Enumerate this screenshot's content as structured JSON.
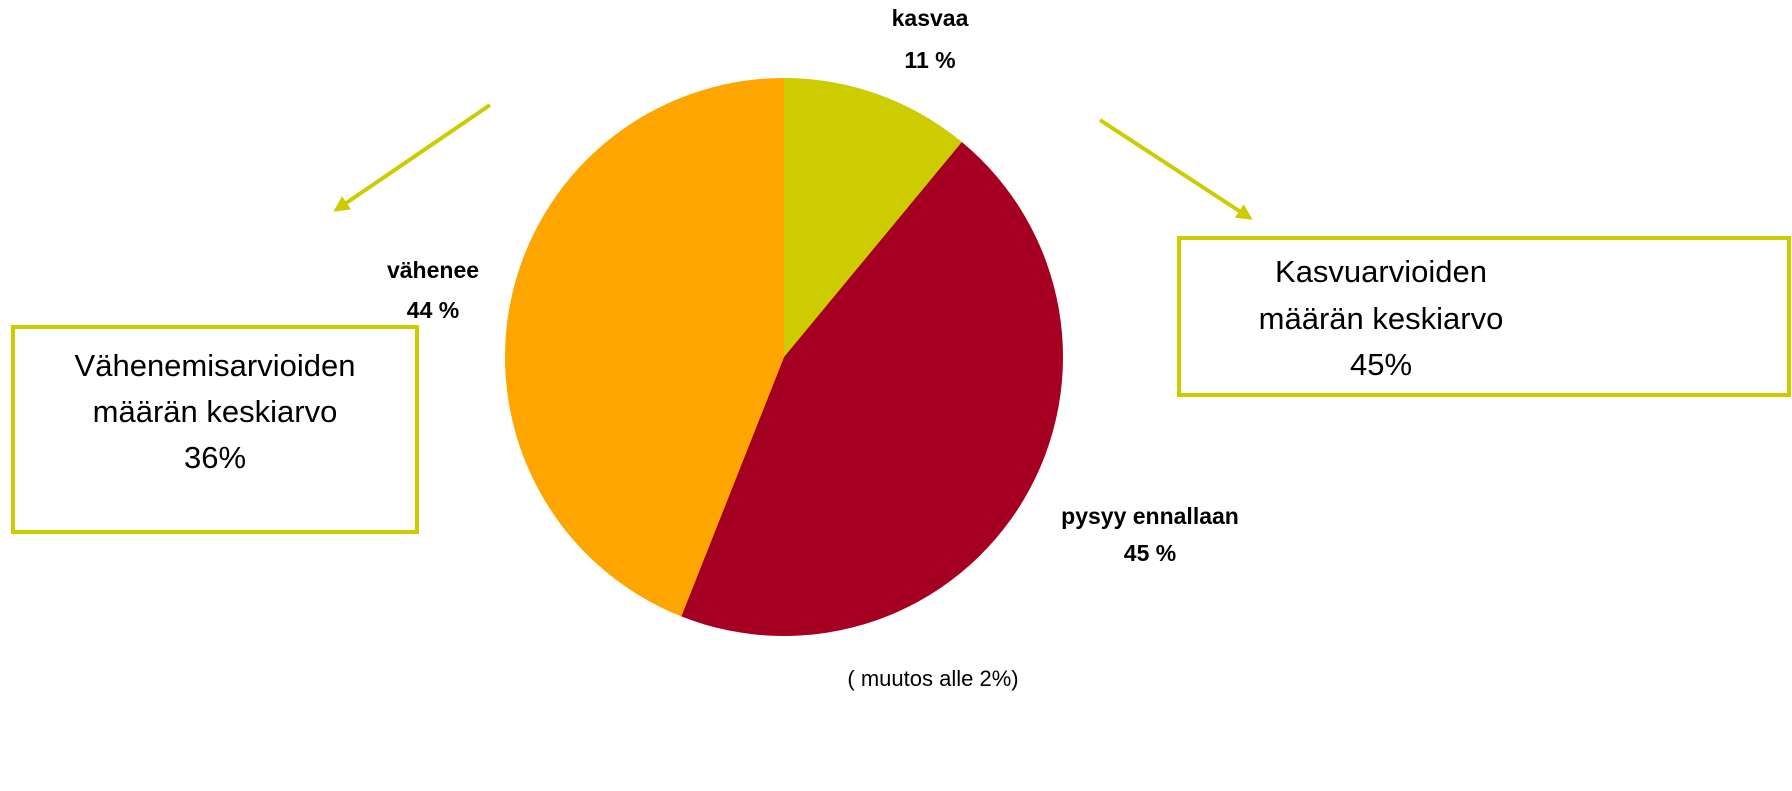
{
  "chart_data": {
    "type": "pie",
    "categories": [
      "kasvaa",
      "pysyy ennallaan",
      "vähenee"
    ],
    "values": [
      11,
      45,
      44
    ],
    "value_labels": [
      "11 %",
      "45 %",
      "44 %"
    ],
    "colors": [
      "#cccc00",
      "#a50021",
      "#ffa500"
    ],
    "annotations": [
      {
        "lines": [
          "Vähenemisarvioiden",
          "määrän keskiarvo",
          "36%"
        ]
      },
      {
        "lines": [
          "Kasvuarvioiden",
          "määrän keskiarvo",
          "45%"
        ]
      }
    ],
    "note": "( muutos alle 2%)"
  }
}
